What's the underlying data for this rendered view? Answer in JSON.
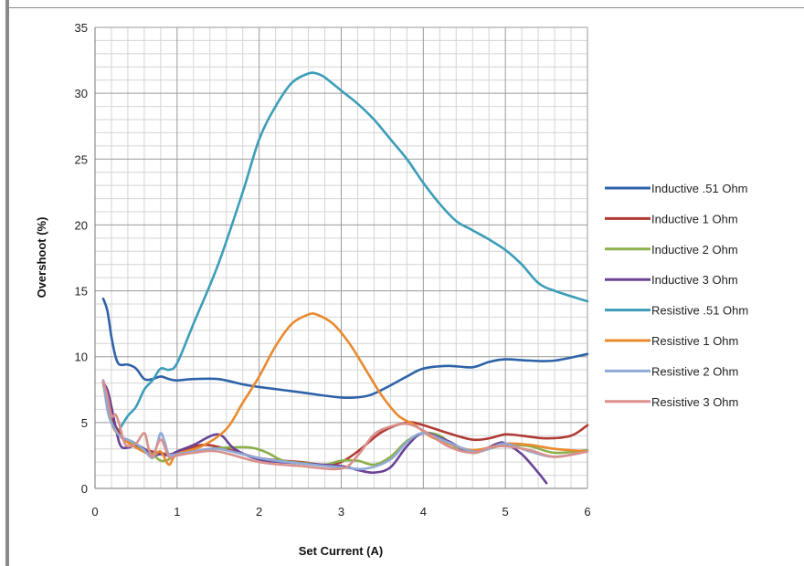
{
  "chart_data": {
    "type": "line",
    "title": "",
    "xlabel": "Set Current (A)",
    "ylabel": "Overshoot (%)",
    "xlim": [
      0,
      6
    ],
    "ylim": [
      0,
      35
    ],
    "xticks": [
      0,
      1,
      2,
      3,
      4,
      5,
      6
    ],
    "yticks": [
      0,
      5,
      10,
      15,
      20,
      25,
      30,
      35
    ],
    "grid": true,
    "minor_grid": true,
    "legend_position": "right",
    "series": [
      {
        "name": "Inductive .51 Ohm",
        "color": "#2E62A8",
        "x": [
          0.1,
          0.15,
          0.2,
          0.25,
          0.3,
          0.4,
          0.5,
          0.6,
          0.7,
          0.8,
          0.9,
          1.0,
          1.2,
          1.5,
          1.8,
          2.0,
          2.5,
          3.0,
          3.3,
          3.5,
          3.8,
          4.0,
          4.3,
          4.6,
          4.8,
          5.0,
          5.3,
          5.6,
          6.0
        ],
        "y": [
          14.4,
          13.5,
          11.5,
          10.0,
          9.4,
          9.4,
          9.1,
          8.3,
          8.3,
          8.5,
          8.3,
          8.2,
          8.3,
          8.3,
          7.9,
          7.7,
          7.3,
          6.9,
          7.0,
          7.5,
          8.5,
          9.1,
          9.3,
          9.2,
          9.6,
          9.8,
          9.7,
          9.7,
          10.2
        ]
      },
      {
        "name": "Inductive 1 Ohm",
        "color": "#B03A35",
        "x": [
          0.1,
          0.2,
          0.3,
          0.4,
          0.5,
          0.7,
          0.9,
          1.0,
          1.3,
          1.6,
          2.0,
          2.5,
          2.8,
          3.0,
          3.2,
          3.5,
          3.8,
          4.0,
          4.3,
          4.6,
          4.8,
          5.0,
          5.2,
          5.5,
          5.8,
          6.0
        ],
        "y": [
          8.2,
          5.5,
          4.2,
          3.5,
          3.2,
          2.8,
          2.6,
          2.7,
          3.3,
          3.0,
          2.3,
          2.0,
          1.8,
          2.0,
          2.8,
          4.3,
          5.0,
          4.8,
          4.2,
          3.7,
          3.8,
          4.1,
          4.0,
          3.8,
          4.0,
          4.8
        ]
      },
      {
        "name": "Inductive 2 Ohm",
        "color": "#8CB04A",
        "x": [
          0.1,
          0.2,
          0.3,
          0.4,
          0.5,
          0.6,
          0.7,
          0.8,
          0.9,
          1.0,
          1.3,
          1.6,
          1.9,
          2.1,
          2.3,
          2.6,
          2.8,
          3.0,
          3.2,
          3.4,
          3.6,
          3.8,
          4.0,
          4.2,
          4.4,
          4.6,
          4.8,
          5.0,
          5.3,
          5.6,
          6.0
        ],
        "y": [
          7.9,
          5.0,
          4.0,
          3.6,
          3.3,
          3.0,
          2.6,
          2.1,
          2.2,
          2.6,
          2.9,
          3.1,
          3.1,
          2.7,
          2.1,
          1.9,
          1.8,
          2.1,
          2.1,
          1.8,
          2.4,
          3.6,
          4.2,
          4.0,
          3.1,
          2.7,
          3.0,
          3.3,
          3.2,
          2.7,
          2.9
        ]
      },
      {
        "name": "Inductive 3 Ohm",
        "color": "#6A4396",
        "x": [
          0.1,
          0.15,
          0.2,
          0.3,
          0.4,
          0.5,
          0.6,
          0.7,
          0.8,
          0.9,
          1.0,
          1.2,
          1.5,
          1.7,
          2.0,
          2.5,
          3.0,
          3.2,
          3.4,
          3.6,
          3.8,
          4.0,
          4.3,
          4.6,
          4.9,
          5.0,
          5.2,
          5.4,
          5.5
        ],
        "y": [
          8.0,
          7.5,
          6.2,
          3.4,
          3.1,
          3.3,
          3.0,
          2.5,
          2.6,
          2.5,
          2.8,
          3.3,
          4.1,
          3.0,
          2.2,
          1.9,
          1.7,
          1.4,
          1.2,
          1.6,
          3.2,
          4.2,
          3.6,
          2.7,
          3.4,
          3.4,
          2.6,
          1.2,
          0.4
        ]
      },
      {
        "name": "Resistive .51 Ohm",
        "color": "#3C9DB8",
        "x": [
          0.3,
          0.4,
          0.5,
          0.6,
          0.7,
          0.8,
          0.9,
          1.0,
          1.2,
          1.5,
          1.8,
          2.0,
          2.2,
          2.4,
          2.6,
          2.7,
          2.8,
          3.0,
          3.2,
          3.4,
          3.6,
          3.8,
          4.0,
          4.2,
          4.4,
          4.6,
          4.8,
          5.0,
          5.2,
          5.4,
          5.6,
          6.0
        ],
        "y": [
          4.5,
          5.5,
          6.2,
          7.5,
          8.2,
          9.1,
          9.0,
          9.5,
          12.5,
          17.0,
          22.5,
          26.5,
          29.0,
          30.8,
          31.5,
          31.5,
          31.2,
          30.2,
          29.2,
          28.0,
          26.5,
          25.0,
          23.2,
          21.6,
          20.3,
          19.6,
          18.9,
          18.1,
          17.0,
          15.6,
          15.0,
          14.2
        ]
      },
      {
        "name": "Resistive 1 Ohm",
        "color": "#E88A2E",
        "x": [
          0.1,
          0.2,
          0.3,
          0.4,
          0.5,
          0.7,
          0.8,
          0.9,
          1.0,
          1.3,
          1.6,
          1.8,
          2.0,
          2.2,
          2.4,
          2.6,
          2.7,
          2.9,
          3.1,
          3.3,
          3.5,
          3.7,
          3.9,
          4.1,
          4.4,
          4.6,
          4.8,
          5.0,
          5.3,
          5.6,
          6.0
        ],
        "y": [
          8.1,
          5.0,
          4.0,
          3.5,
          3.1,
          2.5,
          2.8,
          1.8,
          2.6,
          3.2,
          4.5,
          6.5,
          8.5,
          10.8,
          12.5,
          13.2,
          13.2,
          12.5,
          11.0,
          9.0,
          7.0,
          5.5,
          4.8,
          3.9,
          3.2,
          2.9,
          3.1,
          3.4,
          3.3,
          3.0,
          2.8
        ]
      },
      {
        "name": "Resistive 2 Ohm",
        "color": "#8FAAD6",
        "x": [
          0.1,
          0.15,
          0.2,
          0.3,
          0.4,
          0.5,
          0.6,
          0.7,
          0.75,
          0.8,
          0.85,
          0.9,
          1.0,
          1.2,
          1.5,
          2.0,
          2.5,
          3.0,
          3.3,
          3.6,
          3.8,
          4.0,
          4.3,
          4.6,
          4.8,
          5.0,
          5.3,
          5.6,
          6.0
        ],
        "y": [
          8.2,
          6.0,
          5.0,
          4.0,
          3.7,
          3.4,
          2.9,
          2.3,
          3.2,
          4.2,
          3.5,
          2.6,
          2.6,
          2.8,
          3.0,
          2.3,
          1.9,
          1.6,
          1.5,
          2.2,
          3.5,
          4.2,
          3.5,
          2.8,
          3.0,
          3.4,
          2.8,
          2.4,
          2.8
        ]
      },
      {
        "name": "Resistive 3 Ohm",
        "color": "#D9908C",
        "x": [
          0.1,
          0.15,
          0.2,
          0.25,
          0.3,
          0.35,
          0.4,
          0.5,
          0.6,
          0.65,
          0.7,
          0.8,
          0.9,
          1.0,
          1.2,
          1.5,
          2.0,
          2.5,
          3.0,
          3.2,
          3.4,
          3.6,
          3.8,
          4.0,
          4.3,
          4.6,
          4.8,
          5.0,
          5.3,
          5.6,
          6.0
        ],
        "y": [
          8.1,
          7.0,
          5.5,
          5.6,
          4.8,
          3.6,
          3.2,
          3.4,
          4.2,
          3.1,
          2.4,
          3.7,
          2.4,
          2.5,
          2.7,
          2.8,
          2.0,
          1.7,
          1.5,
          2.5,
          4.1,
          4.7,
          4.9,
          4.4,
          3.2,
          2.7,
          3.1,
          3.2,
          2.9,
          2.4,
          2.8
        ]
      }
    ]
  }
}
